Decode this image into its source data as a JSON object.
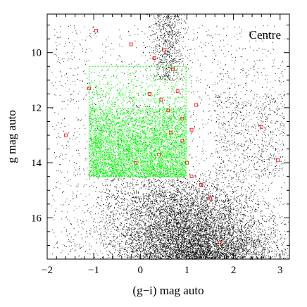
{
  "chart_data": {
    "type": "scatter",
    "title": "",
    "annotation": "Centre",
    "xlabel": "(g−i) mag auto",
    "ylabel": "g mag auto",
    "xlim": [
      -2.0,
      3.2
    ],
    "ylim": [
      17.5,
      8.6
    ],
    "y_inverted": true,
    "grid": false,
    "legend": "none",
    "x_ticks": [
      -2,
      -1,
      0,
      1,
      2,
      3
    ],
    "x_tick_labels": [
      "−2",
      "−1",
      "0",
      "1",
      "2",
      "3"
    ],
    "y_ticks": [
      10,
      12,
      14,
      16
    ],
    "y_tick_labels": [
      "10",
      "12",
      "14",
      "16"
    ],
    "selection_box": {
      "x": [
        -1.1,
        0.98
      ],
      "y": [
        10.5,
        14.5
      ]
    },
    "colors": {
      "field": "#000000",
      "selected": "#00ff00",
      "members": "#ff0000"
    },
    "series": [
      {
        "kind": "field",
        "points": [
          [
            -1.8,
            16.9
          ],
          [
            -1.5,
            16.2
          ],
          [
            -1.3,
            17.1
          ],
          [
            -1.2,
            15.8
          ],
          [
            -0.9,
            16.6
          ],
          [
            -0.8,
            15.5
          ],
          [
            -0.6,
            16.2
          ],
          [
            -0.4,
            15.3
          ],
          [
            -0.2,
            16.9
          ],
          [
            0.0,
            15.6
          ],
          [
            0.2,
            16.4
          ],
          [
            0.4,
            15.1
          ],
          [
            0.6,
            16.8
          ],
          [
            0.8,
            15.4
          ],
          [
            1.0,
            16.1
          ],
          [
            1.2,
            15.0
          ],
          [
            1.4,
            16.5
          ],
          [
            1.6,
            17.2
          ],
          [
            1.8,
            15.9
          ],
          [
            2.0,
            16.7
          ],
          [
            2.2,
            15.6
          ],
          [
            2.4,
            16.3
          ],
          [
            2.6,
            17.0
          ],
          [
            2.8,
            16.0
          ],
          [
            3.0,
            16.6
          ],
          [
            1.1,
            13.8
          ],
          [
            1.5,
            12.9
          ],
          [
            2.2,
            12.4
          ],
          [
            2.9,
            13.5
          ],
          [
            0.4,
            9.5
          ],
          [
            0.6,
            9.0
          ],
          [
            0.9,
            10.3
          ],
          [
            1.6,
            11.6
          ],
          [
            0.1,
            9.8
          ]
        ]
      },
      {
        "kind": "selected",
        "points": [
          [
            -1.0,
            13.9
          ],
          [
            -0.8,
            12.6
          ],
          [
            -0.6,
            14.2
          ],
          [
            -0.4,
            11.5
          ],
          [
            -0.2,
            13.1
          ],
          [
            0.0,
            12.2
          ],
          [
            0.2,
            14.0
          ],
          [
            0.3,
            11.0
          ],
          [
            0.5,
            13.4
          ],
          [
            0.7,
            12.0
          ],
          [
            0.8,
            14.3
          ],
          [
            0.9,
            11.3
          ],
          [
            -0.9,
            14.4
          ],
          [
            -0.5,
            10.8
          ],
          [
            0.1,
            10.6
          ],
          [
            0.6,
            10.9
          ],
          [
            -0.3,
            12.8
          ],
          [
            0.4,
            12.5
          ],
          [
            -0.7,
            13.6
          ],
          [
            0.85,
            13.0
          ]
        ]
      },
      {
        "kind": "members",
        "points": [
          [
            -0.95,
            9.2
          ],
          [
            -0.2,
            9.7
          ],
          [
            0.3,
            10.2
          ],
          [
            0.5,
            9.9
          ],
          [
            0.7,
            10.6
          ],
          [
            0.8,
            11.4
          ],
          [
            0.6,
            12.1
          ],
          [
            0.9,
            12.4
          ],
          [
            1.1,
            12.8
          ],
          [
            0.9,
            13.2
          ],
          [
            1.0,
            14.0
          ],
          [
            0.4,
            13.7
          ],
          [
            -0.1,
            14.0
          ],
          [
            0.2,
            11.5
          ],
          [
            1.1,
            14.5
          ],
          [
            1.3,
            14.8
          ],
          [
            1.5,
            15.3
          ],
          [
            2.6,
            12.7
          ],
          [
            2.95,
            13.9
          ],
          [
            1.7,
            16.9
          ],
          [
            -1.6,
            13.0
          ],
          [
            -1.1,
            11.3
          ],
          [
            0.45,
            11.7
          ],
          [
            0.65,
            12.9
          ],
          [
            1.2,
            11.9
          ]
        ]
      }
    ]
  }
}
